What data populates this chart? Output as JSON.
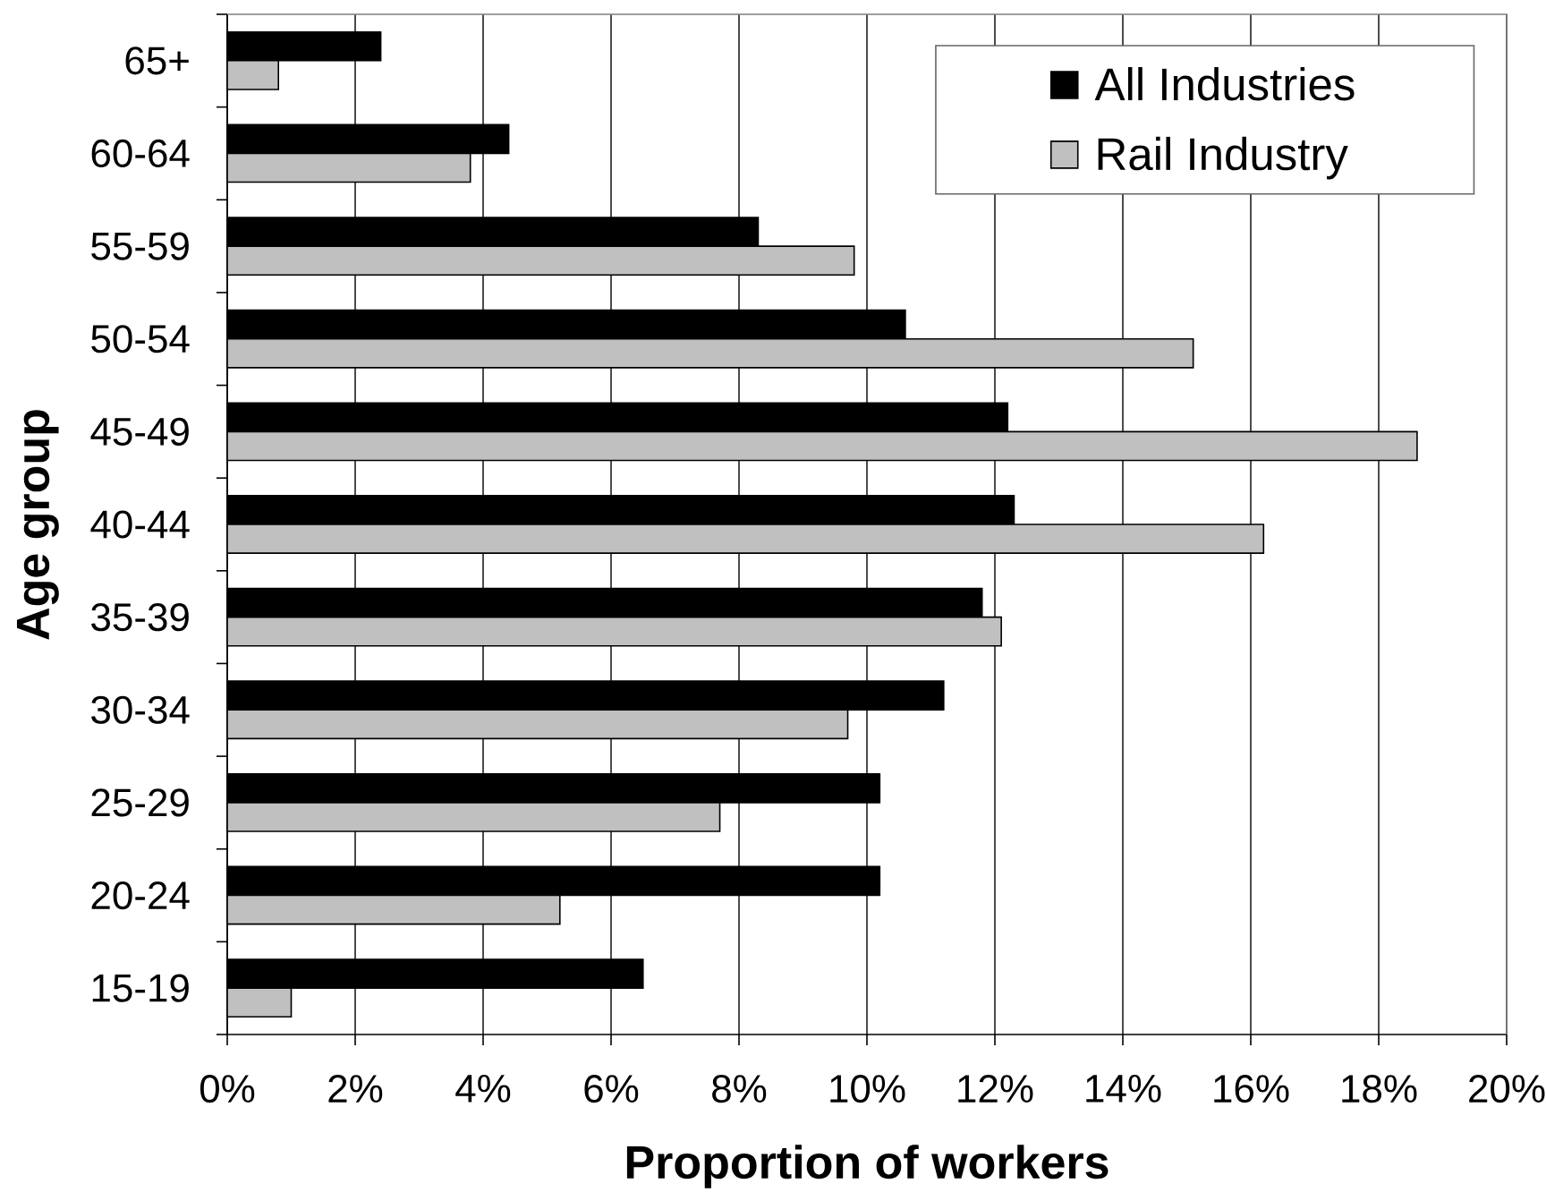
{
  "chart_data": {
    "type": "bar",
    "orientation": "horizontal",
    "xlabel": "Proportion of workers",
    "ylabel": "Age group",
    "categories": [
      "65+",
      "60-64",
      "55-59",
      "50-54",
      "45-49",
      "40-44",
      "35-39",
      "30-34",
      "25-29",
      "20-24",
      "15-19"
    ],
    "series": [
      {
        "name": "All Industries",
        "color": "#000000",
        "values": [
          2.4,
          4.4,
          8.3,
          10.6,
          12.2,
          12.3,
          11.8,
          11.2,
          10.2,
          10.2,
          6.5
        ]
      },
      {
        "name": "Rail Industry",
        "color": "#c0c0c0",
        "values": [
          0.8,
          3.8,
          9.8,
          15.1,
          18.6,
          16.2,
          12.1,
          9.7,
          7.7,
          5.2,
          1.0
        ]
      }
    ],
    "xlim": [
      0,
      20
    ],
    "xticks": [
      {
        "value": 0,
        "label": "0%"
      },
      {
        "value": 2,
        "label": "2%"
      },
      {
        "value": 4,
        "label": "4%"
      },
      {
        "value": 6,
        "label": "6%"
      },
      {
        "value": 8,
        "label": "8%"
      },
      {
        "value": 10,
        "label": "10%"
      },
      {
        "value": 12,
        "label": "12%"
      },
      {
        "value": 14,
        "label": "14%"
      },
      {
        "value": 16,
        "label": "16%"
      },
      {
        "value": 18,
        "label": "18%"
      },
      {
        "value": 20,
        "label": "20%"
      }
    ],
    "grid": "x",
    "legend": "top right"
  }
}
